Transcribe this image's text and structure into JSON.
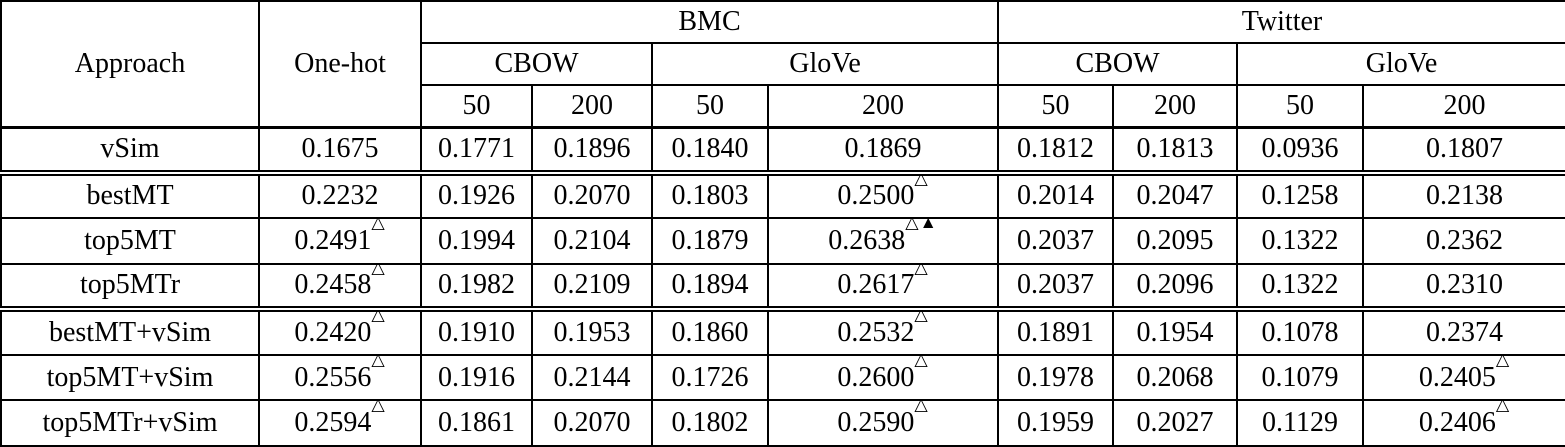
{
  "table": {
    "header": {
      "approach": "Approach",
      "onehot": "One-hot",
      "groups": [
        {
          "label": "BMC"
        },
        {
          "label": "Twitter"
        }
      ],
      "subgroups": [
        "CBOW",
        "GloVe",
        "CBOW",
        "GloVe"
      ],
      "dims": [
        "50",
        "200",
        "50",
        "200",
        "50",
        "200",
        "50",
        "200"
      ]
    },
    "markers": {
      "open_triangle": "△",
      "filled_triangle": "▲"
    },
    "rows": [
      {
        "label": "vSim",
        "group_start": false,
        "cells": [
          {
            "v": "0.1675"
          },
          {
            "v": "0.1771"
          },
          {
            "v": "0.1896"
          },
          {
            "v": "0.1840"
          },
          {
            "v": "0.1869"
          },
          {
            "v": "0.1812"
          },
          {
            "v": "0.1813"
          },
          {
            "v": "0.0936"
          },
          {
            "v": "0.1807"
          }
        ]
      },
      {
        "label": "bestMT",
        "group_start": true,
        "cells": [
          {
            "v": "0.2232"
          },
          {
            "v": "0.1926"
          },
          {
            "v": "0.2070"
          },
          {
            "v": "0.1803"
          },
          {
            "v": "0.2500",
            "sup": "△"
          },
          {
            "v": "0.2014"
          },
          {
            "v": "0.2047"
          },
          {
            "v": "0.1258"
          },
          {
            "v": "0.2138"
          }
        ]
      },
      {
        "label": "top5MT",
        "group_start": false,
        "cells": [
          {
            "v": "0.2491",
            "sup": "△"
          },
          {
            "v": "0.1994",
            "bold": true
          },
          {
            "v": "0.2104"
          },
          {
            "v": "0.1879"
          },
          {
            "v": "0.2638",
            "bold": true,
            "sup": "△▲"
          },
          {
            "v": "0.2037",
            "bold": true
          },
          {
            "v": "0.2095"
          },
          {
            "v": "0.1322",
            "bold": true
          },
          {
            "v": "0.2362"
          }
        ]
      },
      {
        "label": "top5MTr",
        "group_start": false,
        "cells": [
          {
            "v": "0.2458",
            "sup": "△"
          },
          {
            "v": "0.1982"
          },
          {
            "v": "0.2109"
          },
          {
            "v": "0.1894",
            "bold": true
          },
          {
            "v": "0.2617",
            "sup": "△"
          },
          {
            "v": "0.2037",
            "bold": true
          },
          {
            "v": "0.2096",
            "bold": true
          },
          {
            "v": "0.1322",
            "bold": true
          },
          {
            "v": "0.2310"
          }
        ]
      },
      {
        "label": "bestMT+vSim",
        "group_start": true,
        "cells": [
          {
            "v": "0.2420",
            "sup": "△"
          },
          {
            "v": "0.1910"
          },
          {
            "v": "0.1953"
          },
          {
            "v": "0.1860"
          },
          {
            "v": "0.2532",
            "sup": "△"
          },
          {
            "v": "0.1891"
          },
          {
            "v": "0.1954"
          },
          {
            "v": "0.1078"
          },
          {
            "v": "0.2374"
          }
        ]
      },
      {
        "label": "top5MT+vSim",
        "group_start": false,
        "cells": [
          {
            "v": "0.2556",
            "sup": "△"
          },
          {
            "v": "0.1916"
          },
          {
            "v": "0.2144",
            "bold": true
          },
          {
            "v": "0.1726"
          },
          {
            "v": "0.2600",
            "sup": "△"
          },
          {
            "v": "0.1978"
          },
          {
            "v": "0.2068"
          },
          {
            "v": "0.1079"
          },
          {
            "v": "0.2405",
            "sup": "△"
          }
        ]
      },
      {
        "label": "top5MTr+vSim",
        "group_start": false,
        "cells": [
          {
            "v": "0.2594",
            "bold": true,
            "sup": "△"
          },
          {
            "v": "0.1861"
          },
          {
            "v": "0.2070"
          },
          {
            "v": "0.1802"
          },
          {
            "v": "0.2590",
            "sup": "△"
          },
          {
            "v": "0.1959"
          },
          {
            "v": "0.2027"
          },
          {
            "v": "0.1129"
          },
          {
            "v": "0.2406",
            "bold": true,
            "sup": "△"
          }
        ]
      }
    ]
  }
}
